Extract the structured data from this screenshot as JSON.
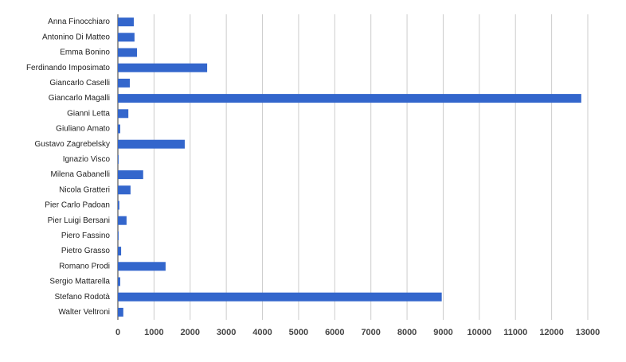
{
  "chart_data": {
    "type": "hbar",
    "categories": [
      "Anna Finocchiaro",
      "Antonino Di Matteo",
      "Emma Bonino",
      "Ferdinando Imposimato",
      "Giancarlo Caselli",
      "Giancarlo Magalli",
      "Gianni Letta",
      "Giuliano Amato",
      "Gustavo Zagrebelsky",
      "Ignazio Visco",
      "Milena Gabanelli",
      "Nicola Gratteri",
      "Pier Carlo Padoan",
      "Pier Luigi Bersani",
      "Piero Fassino",
      "Pietro Grasso",
      "Romano Prodi",
      "Sergio Mattarella",
      "Stefano Rodotà",
      "Walter Veltroni"
    ],
    "values": [
      440,
      460,
      530,
      2470,
      330,
      12820,
      290,
      65,
      1850,
      20,
      700,
      350,
      40,
      240,
      20,
      90,
      1320,
      65,
      8960,
      150
    ],
    "color": "#3366cc",
    "xlim": [
      0,
      13000
    ],
    "xticks": [
      0,
      1000,
      2000,
      3000,
      4000,
      5000,
      6000,
      7000,
      8000,
      9000,
      10000,
      11000,
      12000,
      13000
    ],
    "grid": true
  }
}
